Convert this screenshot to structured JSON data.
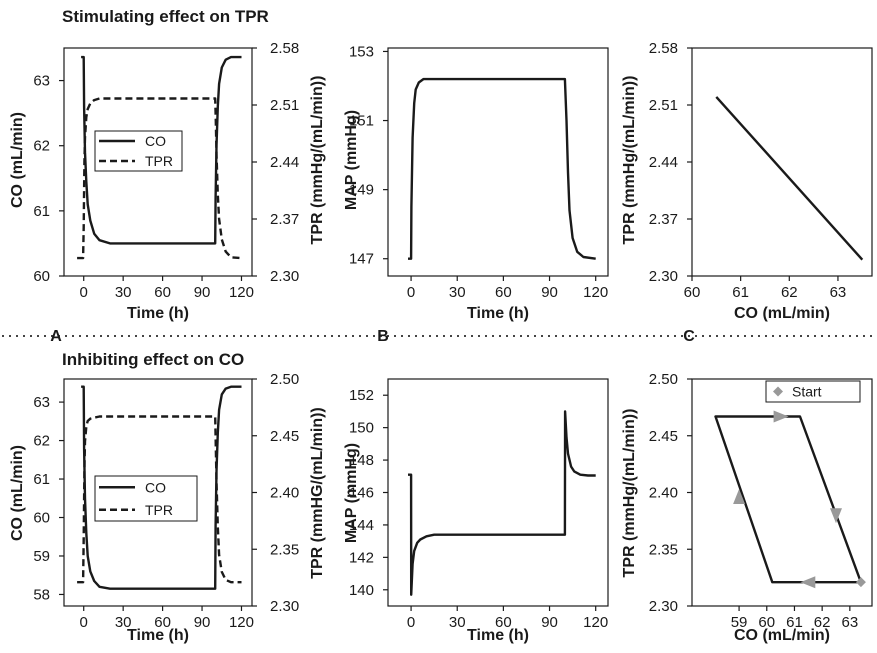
{
  "figure": {
    "title_top": "Stimulating effect on TPR",
    "title_bottom": "Inhibiting effect on CO",
    "panel_letters": [
      "A",
      "B",
      "C"
    ]
  },
  "colors": {
    "line": "#1a1a1a",
    "arrow": "#999999"
  },
  "chart_data": [
    {
      "id": "top_A",
      "type": "line",
      "xlabel": "Time (h)",
      "ylabel": "CO (mL/min)",
      "ylabel_right": "TPR (mmHg/(mL/min))",
      "xticks": [
        "0",
        "30",
        "60",
        "90",
        "120"
      ],
      "xlim": [
        -15,
        128
      ],
      "yticks": [
        "60",
        "61",
        "62",
        "63"
      ],
      "ylim": [
        60,
        63.5
      ],
      "yticks_right": [
        "2.30",
        "2.37",
        "2.44",
        "2.51",
        "2.58"
      ],
      "ylim_right": [
        2.3,
        2.58
      ],
      "legend": [
        "CO",
        "TPR"
      ],
      "legend_position": "center-left",
      "series": [
        {
          "name": "CO",
          "style": "solid",
          "axis": "left",
          "x": [
            -2,
            0,
            0.3,
            1,
            2,
            3,
            5,
            8,
            12,
            20,
            40,
            60,
            80,
            100,
            100.3,
            101,
            102,
            103,
            105,
            108,
            112,
            120
          ],
          "y": [
            63.36,
            63.36,
            62.6,
            61.9,
            61.45,
            61.1,
            60.85,
            60.65,
            60.55,
            60.5,
            60.5,
            60.5,
            60.5,
            60.5,
            61.2,
            62.0,
            62.6,
            62.95,
            63.2,
            63.32,
            63.36,
            63.36
          ]
        },
        {
          "name": "TPR",
          "style": "dashed",
          "axis": "right",
          "x": [
            -5,
            -0.5,
            0,
            0.5,
            1,
            2,
            3,
            5,
            8,
            12,
            20,
            60,
            100,
            100.5,
            101,
            102,
            103,
            105,
            108,
            112,
            120
          ],
          "y": [
            2.322,
            2.322,
            2.36,
            2.44,
            2.47,
            2.495,
            2.505,
            2.512,
            2.516,
            2.518,
            2.518,
            2.518,
            2.518,
            2.49,
            2.45,
            2.4,
            2.37,
            2.345,
            2.33,
            2.323,
            2.322
          ]
        }
      ]
    },
    {
      "id": "top_B",
      "type": "line",
      "xlabel": "Time (h)",
      "ylabel": "MAP (mmHg)",
      "xticks": [
        "0",
        "30",
        "60",
        "90",
        "120"
      ],
      "xlim": [
        -15,
        128
      ],
      "yticks": [
        "147",
        "149",
        "151",
        "153"
      ],
      "ylim": [
        146.5,
        153.1
      ],
      "series": [
        {
          "name": "",
          "style": "solid",
          "x": [
            -2,
            0,
            0.2,
            1,
            2,
            3,
            5,
            8,
            12,
            20,
            60,
            100,
            101,
            102,
            103,
            105,
            108,
            112,
            120
          ],
          "y": [
            147,
            147,
            148.5,
            150.5,
            151.5,
            151.9,
            152.1,
            152.2,
            152.2,
            152.2,
            152.2,
            152.2,
            151.0,
            149.5,
            148.4,
            147.6,
            147.2,
            147.05,
            147.0
          ]
        }
      ]
    },
    {
      "id": "top_C",
      "type": "line",
      "xlabel": "CO (mL/min)",
      "ylabel": "TPR (mmHg/(mL/min))",
      "xticks": [
        "60",
        "61",
        "62",
        "63"
      ],
      "xlim": [
        60,
        63.7
      ],
      "yticks": [
        "2.30",
        "2.37",
        "2.44",
        "2.51",
        "2.58"
      ],
      "ylim": [
        2.3,
        2.58
      ],
      "series": [
        {
          "name": "",
          "style": "solid",
          "x": [
            60.5,
            63.5
          ],
          "y": [
            2.52,
            2.32
          ]
        }
      ]
    },
    {
      "id": "bottom_A",
      "type": "line",
      "xlabel": "Time (h)",
      "ylabel": "CO (mL/min)",
      "ylabel_right": "TPR (mmHG/(mL/min))",
      "xticks": [
        "0",
        "30",
        "60",
        "90",
        "120"
      ],
      "xlim": [
        -15,
        128
      ],
      "yticks": [
        "58",
        "59",
        "60",
        "61",
        "62",
        "63"
      ],
      "ylim": [
        57.7,
        63.6
      ],
      "yticks_right": [
        "2.30",
        "2.35",
        "2.40",
        "2.45",
        "2.50"
      ],
      "ylim_right": [
        2.3,
        2.5
      ],
      "legend": [
        "CO",
        "TPR"
      ],
      "legend_position": "center-left",
      "series": [
        {
          "name": "CO",
          "style": "solid",
          "axis": "left",
          "x": [
            -2,
            0,
            0.3,
            1,
            2,
            3,
            5,
            8,
            12,
            20,
            60,
            100,
            100.3,
            101,
            102,
            103,
            105,
            108,
            112,
            120
          ],
          "y": [
            63.4,
            63.4,
            61.8,
            60.5,
            59.6,
            59.0,
            58.6,
            58.35,
            58.2,
            58.15,
            58.15,
            58.15,
            59.8,
            61.2,
            62.2,
            62.8,
            63.2,
            63.35,
            63.4,
            63.4
          ]
        },
        {
          "name": "TPR",
          "style": "dashed",
          "axis": "right",
          "x": [
            -5,
            -0.5,
            0,
            0.5,
            1,
            2,
            3,
            5,
            8,
            12,
            20,
            60,
            100,
            100.5,
            101,
            102,
            103,
            105,
            108,
            112,
            120
          ],
          "y": [
            2.321,
            2.321,
            2.36,
            2.42,
            2.445,
            2.458,
            2.463,
            2.465,
            2.466,
            2.467,
            2.467,
            2.467,
            2.467,
            2.44,
            2.41,
            2.37,
            2.345,
            2.33,
            2.323,
            2.321,
            2.321
          ]
        }
      ]
    },
    {
      "id": "bottom_B",
      "type": "line",
      "xlabel": "Time (h)",
      "ylabel": "MAP (mmHg)",
      "xticks": [
        "0",
        "30",
        "60",
        "90",
        "120"
      ],
      "xlim": [
        -15,
        128
      ],
      "yticks": [
        "140",
        "142",
        "144",
        "146",
        "148",
        "150",
        "152"
      ],
      "ylim": [
        139,
        153
      ],
      "series": [
        {
          "name": "",
          "style": "solid",
          "x": [
            -2,
            0,
            0.1,
            1,
            2,
            4,
            6,
            10,
            15,
            20,
            30,
            60,
            100,
            100.1,
            101,
            102,
            104,
            106,
            110,
            115,
            120
          ],
          "y": [
            147.1,
            147.1,
            139.7,
            141.6,
            142.4,
            142.9,
            143.1,
            143.3,
            143.4,
            143.4,
            143.4,
            143.4,
            143.4,
            151.0,
            149.4,
            148.4,
            147.6,
            147.3,
            147.1,
            147.05,
            147.05
          ]
        }
      ]
    },
    {
      "id": "bottom_C",
      "type": "line",
      "xlabel": "CO (mL/min)",
      "ylabel": "TPR (mmHg/(mL/min))",
      "xticks": [
        "59",
        "60",
        "61",
        "62",
        "63"
      ],
      "xlim": [
        57.3,
        63.8
      ],
      "yticks": [
        "2.30",
        "2.35",
        "2.40",
        "2.45",
        "2.50"
      ],
      "ylim": [
        2.3,
        2.5
      ],
      "legend": [
        "Start"
      ],
      "legend_position": "top-right",
      "start_point": {
        "x": 63.4,
        "y": 2.321
      },
      "series": [
        {
          "name": "",
          "style": "solid",
          "x": [
            63.4,
            60.2,
            58.15,
            61.2,
            63.4
          ],
          "y": [
            2.321,
            2.321,
            2.467,
            2.467,
            2.321
          ]
        }
      ],
      "arrows": [
        {
          "x": 61.5,
          "y": 2.321,
          "direction": "left"
        },
        {
          "x": 59.0,
          "y": 2.396,
          "direction": "up"
        },
        {
          "x": 60.5,
          "y": 2.467,
          "direction": "right"
        },
        {
          "x": 62.5,
          "y": 2.38,
          "direction": "down"
        }
      ]
    }
  ]
}
